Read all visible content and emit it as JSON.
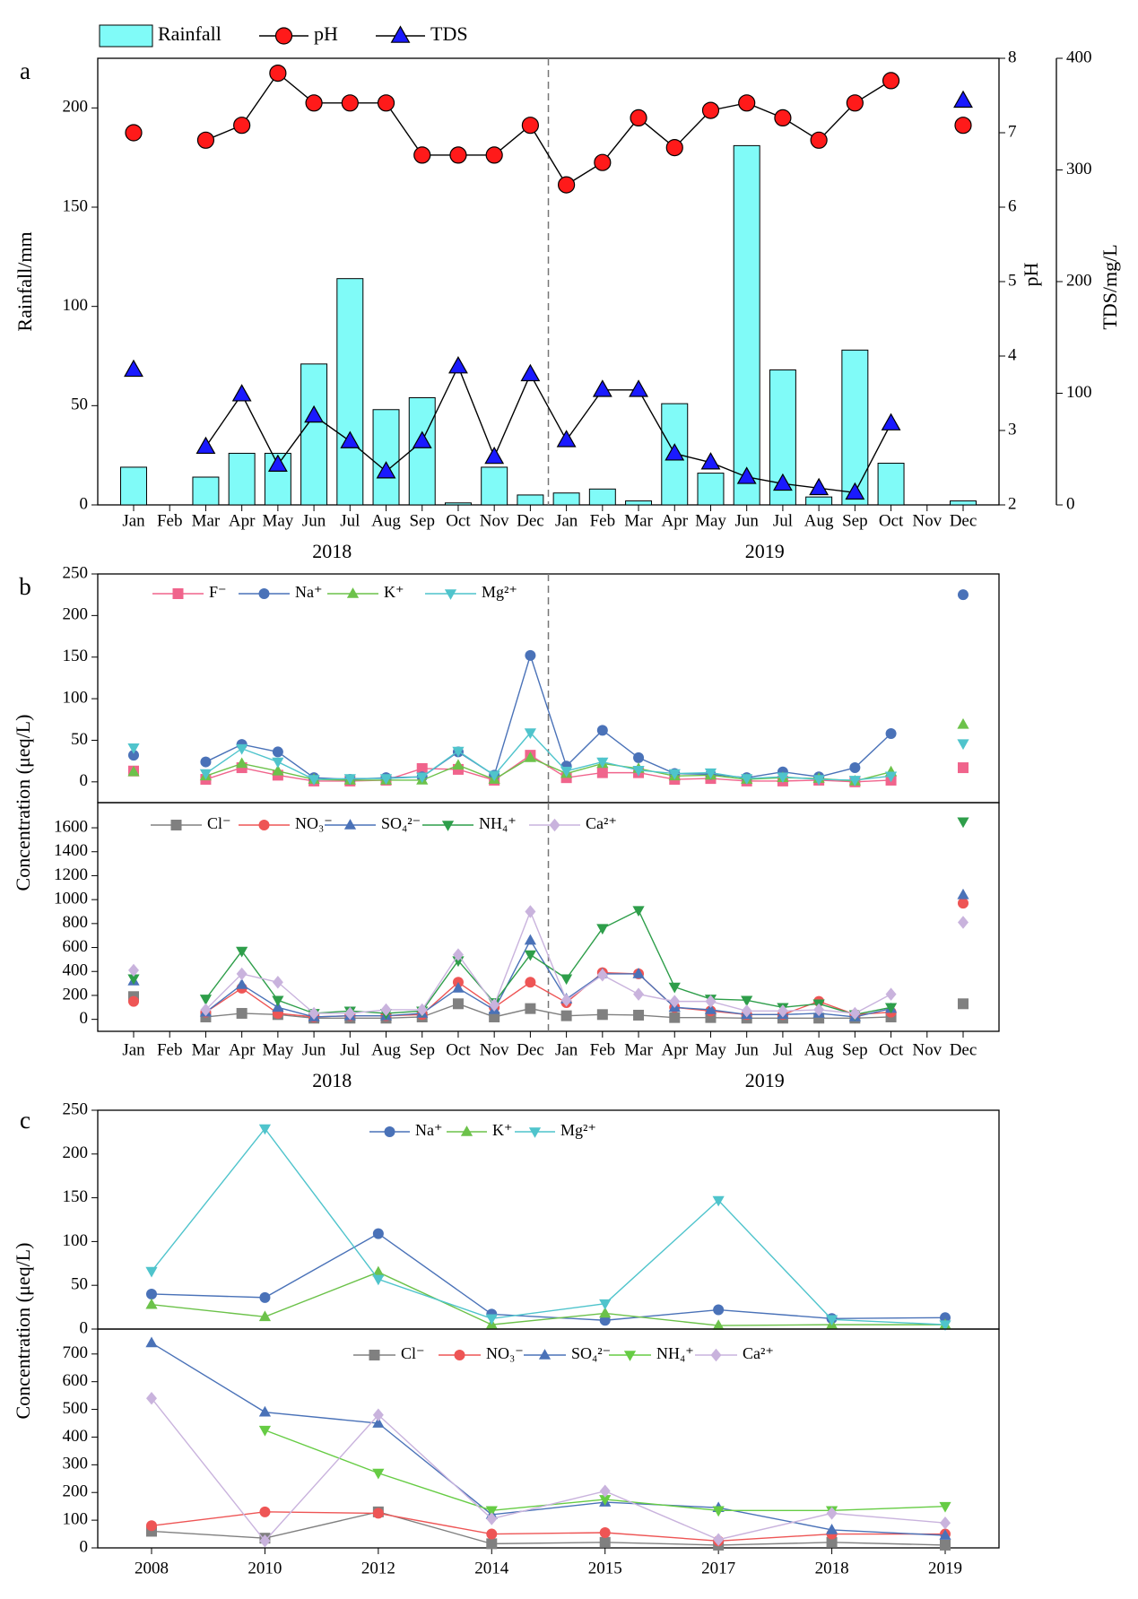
{
  "chart_data": [
    {
      "type": "bar-line",
      "label": "a",
      "categories": [
        "Jan",
        "Feb",
        "Mar",
        "Apr",
        "May",
        "Jun",
        "Jul",
        "Aug",
        "Sep",
        "Oct",
        "Nov",
        "Dec",
        "Jan",
        "Feb",
        "Mar",
        "Apr",
        "May",
        "Jun",
        "Jul",
        "Aug",
        "Sep",
        "Oct",
        "Nov",
        "Dec"
      ],
      "x_groups": [
        "2018",
        "2019"
      ],
      "ylabel": "Rainfall/mm",
      "ylim": [
        0,
        225
      ],
      "yticks": [
        0,
        50,
        100,
        150,
        200
      ],
      "y2label": "pH",
      "y2lim": [
        2,
        8
      ],
      "y2ticks": [
        2,
        3,
        4,
        5,
        6,
        7,
        8
      ],
      "y3label": "TDS/mg/L",
      "y3lim": [
        0,
        400
      ],
      "y3ticks": [
        0,
        100,
        200,
        300,
        400
      ],
      "series": [
        {
          "name": "Rainfall",
          "type": "bar",
          "color": "#80fbf8",
          "values": [
            19,
            null,
            14,
            26,
            26,
            71,
            114,
            48,
            54,
            1,
            19,
            5,
            6,
            8,
            2,
            51,
            16,
            181,
            68,
            4,
            78,
            21,
            null,
            2
          ]
        },
        {
          "name": "pH",
          "axis": "y2",
          "marker": "circle",
          "color": "#ff1a1a",
          "line_color": "#000000",
          "values": [
            7.0,
            null,
            6.9,
            7.1,
            7.8,
            7.4,
            7.4,
            7.4,
            6.7,
            6.7,
            6.7,
            7.1,
            6.3,
            6.6,
            7.2,
            6.8,
            7.3,
            7.4,
            7.2,
            6.9,
            7.4,
            7.7,
            null,
            7.1
          ]
        },
        {
          "name": "TDS",
          "axis": "y3",
          "marker": "triangle",
          "color": "#1a1aff",
          "line_color": "#000000",
          "values": [
            121,
            null,
            52,
            99,
            36,
            80,
            57,
            30,
            57,
            124,
            43,
            117,
            58,
            103,
            103,
            46,
            38,
            25,
            19,
            15,
            11,
            73,
            null,
            362
          ]
        }
      ]
    },
    {
      "type": "line",
      "label": "b",
      "ylim": [
        -25,
        250
      ],
      "yticks": [
        0,
        50,
        100,
        150,
        200,
        250
      ],
      "series": [
        {
          "name": "F⁻",
          "marker": "square",
          "color": "#f0648c",
          "values": [
            13,
            null,
            3,
            17,
            8,
            1,
            1,
            2,
            16,
            15,
            2,
            32,
            5,
            11,
            11,
            3,
            4,
            1,
            1,
            2,
            0,
            2,
            null,
            17
          ]
        },
        {
          "name": "Na⁺",
          "marker": "circle",
          "color": "#4a72b8",
          "values": [
            32,
            null,
            24,
            45,
            36,
            5,
            3,
            5,
            6,
            36,
            8,
            152,
            19,
            62,
            29,
            10,
            9,
            5,
            12,
            6,
            17,
            58,
            null,
            225
          ]
        },
        {
          "name": "K⁺",
          "marker": "triangle",
          "color": "#6cc24a",
          "values": [
            12,
            null,
            7,
            22,
            13,
            3,
            2,
            2,
            2,
            20,
            3,
            29,
            10,
            22,
            16,
            7,
            8,
            3,
            5,
            4,
            1,
            12,
            null,
            69
          ]
        },
        {
          "name": "Mg²⁺",
          "marker": "triangle-down",
          "color": "#4fc4cc",
          "values": [
            41,
            null,
            10,
            40,
            24,
            3,
            4,
            4,
            6,
            37,
            8,
            59,
            13,
            24,
            14,
            10,
            11,
            4,
            6,
            3,
            2,
            7,
            null,
            46
          ]
        }
      ]
    },
    {
      "type": "line",
      "ylabel": "Concentration (μeq/L)",
      "categories": [
        "Jan",
        "Feb",
        "Mar",
        "Apr",
        "May",
        "Jun",
        "Jul",
        "Aug",
        "Sep",
        "Oct",
        "Nov",
        "Dec",
        "Jan",
        "Feb",
        "Mar",
        "Apr",
        "May",
        "Jun",
        "Jul",
        "Aug",
        "Sep",
        "Oct",
        "Nov",
        "Dec"
      ],
      "x_groups": [
        "2018",
        "2019"
      ],
      "ylim": [
        -100,
        1810
      ],
      "yticks": [
        0,
        200,
        400,
        600,
        800,
        1000,
        1200,
        1400,
        1600
      ],
      "series": [
        {
          "name": "Cl⁻",
          "marker": "square",
          "color": "#808080",
          "values": [
            190,
            null,
            20,
            50,
            40,
            10,
            10,
            10,
            20,
            130,
            20,
            90,
            30,
            40,
            35,
            15,
            15,
            10,
            10,
            10,
            10,
            20,
            null,
            130
          ]
        },
        {
          "name": "NO₃⁻",
          "marker": "circle",
          "color": "#ee5555",
          "values": [
            150,
            null,
            60,
            260,
            50,
            20,
            30,
            30,
            40,
            310,
            100,
            310,
            140,
            390,
            380,
            100,
            70,
            40,
            40,
            150,
            40,
            60,
            null,
            970
          ]
        },
        {
          "name": "SO₄²⁻",
          "marker": "triangle",
          "color": "#4a72b8",
          "values": [
            320,
            null,
            60,
            290,
            100,
            20,
            30,
            30,
            50,
            260,
            80,
            660,
            170,
            380,
            380,
            100,
            80,
            40,
            40,
            50,
            20,
            90,
            null,
            1040
          ]
        },
        {
          "name": "NH₄⁺",
          "marker": "triangle-down",
          "color": "#2e9e4a",
          "values": [
            340,
            null,
            170,
            570,
            160,
            50,
            70,
            50,
            70,
            490,
            140,
            540,
            340,
            760,
            910,
            270,
            170,
            160,
            100,
            130,
            40,
            100,
            null,
            1650
          ]
        },
        {
          "name": "Ca²⁺",
          "marker": "diamond",
          "color": "#c9b3dd",
          "values": [
            410,
            null,
            80,
            380,
            310,
            50,
            50,
            80,
            80,
            540,
            120,
            900,
            160,
            370,
            210,
            150,
            150,
            70,
            70,
            80,
            50,
            210,
            null,
            810
          ]
        }
      ]
    },
    {
      "type": "line",
      "label": "c",
      "ylim": [
        0,
        250
      ],
      "yticks": [
        0,
        50,
        100,
        150,
        200,
        250
      ],
      "series": [
        {
          "name": "Na⁺",
          "marker": "circle",
          "color": "#4a72b8",
          "values": [
            40,
            36,
            109,
            17,
            10,
            22,
            12,
            13
          ]
        },
        {
          "name": "K⁺",
          "marker": "triangle",
          "color": "#6cc24a",
          "values": [
            28,
            14,
            65,
            5,
            18,
            4,
            5,
            5
          ]
        },
        {
          "name": "Mg²⁺",
          "marker": "triangle-down",
          "color": "#4fc4cc",
          "values": [
            66,
            229,
            57,
            12,
            29,
            147,
            11,
            5
          ]
        }
      ]
    },
    {
      "type": "line",
      "ylabel": "Concentration (μeq/L)",
      "categories": [
        "2008",
        "2010",
        "2012",
        "2014",
        "2015",
        "2017",
        "2018",
        "2019"
      ],
      "ylim": [
        0,
        790
      ],
      "yticks": [
        0,
        100,
        200,
        300,
        400,
        500,
        600,
        700
      ],
      "series": [
        {
          "name": "Cl⁻",
          "marker": "square",
          "color": "#808080",
          "values": [
            60,
            35,
            130,
            15,
            20,
            10,
            20,
            10
          ]
        },
        {
          "name": "NO₃⁻",
          "marker": "circle",
          "color": "#ee5555",
          "values": [
            80,
            130,
            125,
            50,
            55,
            25,
            50,
            50
          ]
        },
        {
          "name": "SO₄²⁻",
          "marker": "triangle",
          "color": "#4a72b8",
          "values": [
            740,
            490,
            450,
            120,
            165,
            145,
            65,
            45
          ]
        },
        {
          "name": "NH₄⁺",
          "marker": "triangle-down",
          "color": "#66cc44",
          "values": [
            null,
            425,
            270,
            135,
            175,
            135,
            135,
            150
          ]
        },
        {
          "name": "Ca²⁺",
          "marker": "diamond",
          "color": "#c9b3dd",
          "values": [
            540,
            25,
            480,
            105,
            205,
            30,
            125,
            90
          ]
        }
      ]
    }
  ]
}
